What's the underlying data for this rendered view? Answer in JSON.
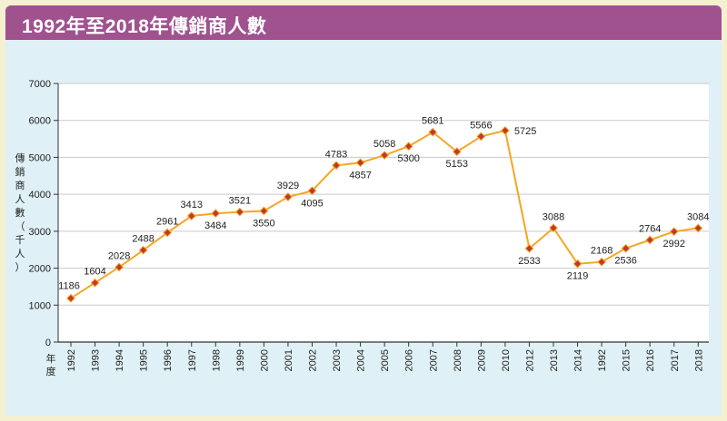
{
  "header": {
    "title": "1992年至2018年傳銷商人數"
  },
  "axis": {
    "y_label": [
      "傳",
      "銷",
      "商",
      "人",
      "數",
      "（",
      "千",
      "人",
      "）"
    ],
    "x_label": [
      "年",
      "度"
    ]
  },
  "colors": {
    "header": "#a0528f",
    "line": "#f5a623",
    "marker": "#c0392b",
    "panel": "#dff0f6"
  },
  "chart_data": {
    "type": "line",
    "title": "1992年至2018年傳銷商人數",
    "xlabel": "年度",
    "ylabel": "傳銷商人數（千人）",
    "ylim": [
      0,
      7000
    ],
    "yticks": [
      0,
      1000,
      2000,
      3000,
      4000,
      5000,
      6000,
      7000
    ],
    "grid": true,
    "categories": [
      "1992",
      "1993",
      "1994",
      "1995",
      "1996",
      "1997",
      "1998",
      "1999",
      "2000",
      "2001",
      "2002",
      "2003",
      "2004",
      "2005",
      "2006",
      "2007",
      "2008",
      "2009",
      "2010",
      "2012",
      "2013",
      "2014",
      "1992",
      "2015",
      "2016",
      "2017",
      "2018"
    ],
    "values": [
      1186,
      1604,
      2028,
      2488,
      2961,
      3413,
      3484,
      3521,
      3550,
      3929,
      4095,
      4783,
      4857,
      5058,
      5300,
      5681,
      5153,
      5566,
      5725,
      2533,
      3088,
      2119,
      2168,
      2536,
      2764,
      2992,
      3084
    ]
  }
}
